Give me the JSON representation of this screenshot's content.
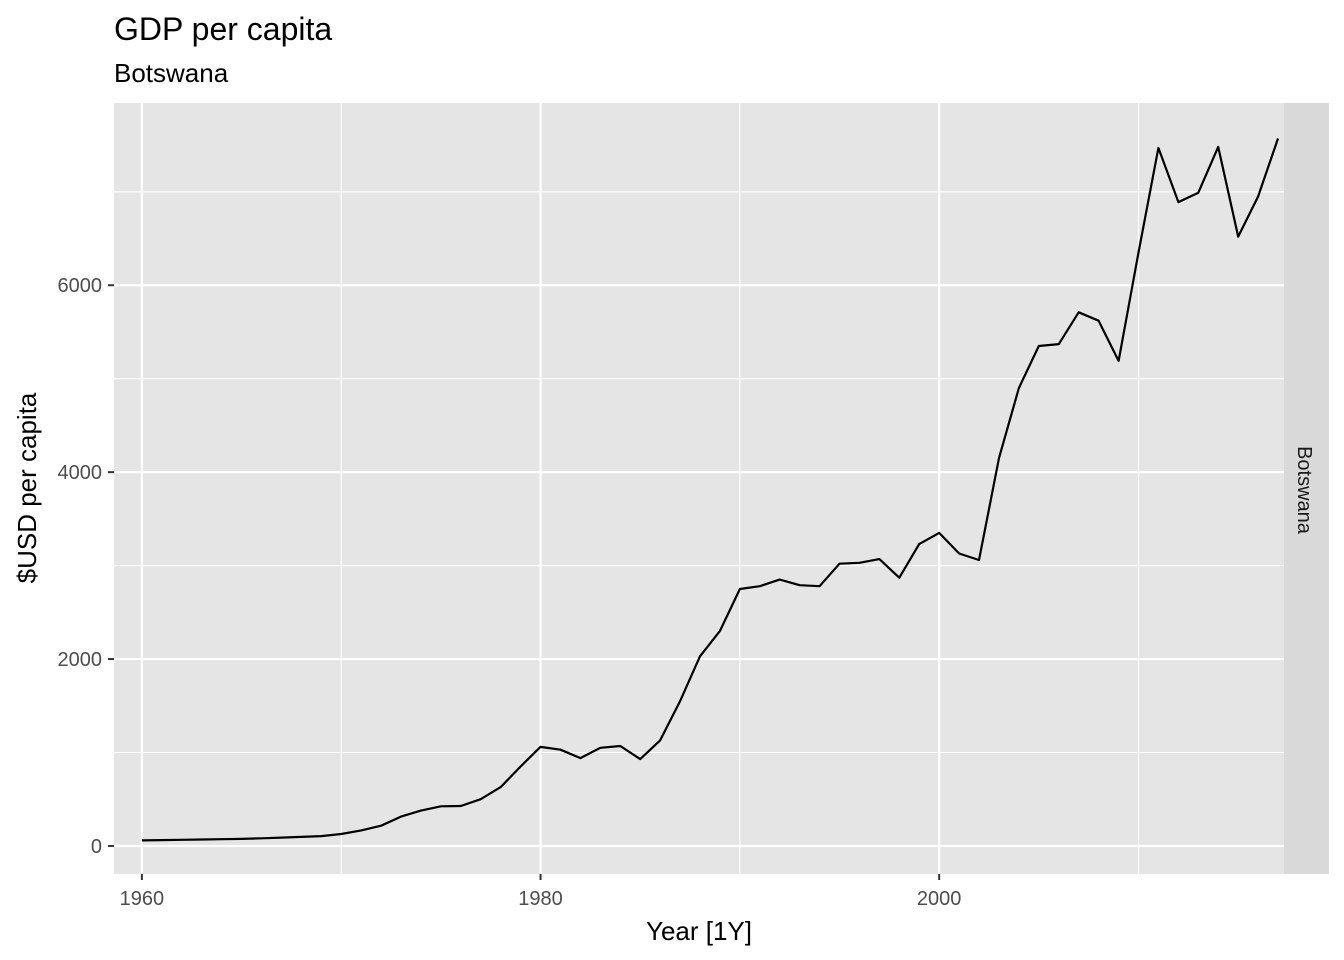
{
  "chart_data": {
    "type": "line",
    "title": "GDP per capita",
    "subtitle": "Botswana",
    "xlabel": "Year [1Y]",
    "ylabel": "$USD per capita",
    "facet_label": "Botswana",
    "xlim": [
      1958.6,
      2017.3
    ],
    "ylim": [
      -300,
      7950
    ],
    "x_ticks": [
      1960,
      1980,
      2000
    ],
    "x_minor_ticks": [
      1970,
      1990,
      2010
    ],
    "y_ticks": [
      0,
      2000,
      4000,
      6000
    ],
    "y_minor_ticks": [
      1000,
      3000,
      5000,
      7000
    ],
    "grid": true,
    "line_color": "#000000",
    "panel_color": "#e5e5e5",
    "strip_color": "#d9d9d9",
    "series": [
      {
        "x": [
          1960,
          1961,
          1962,
          1963,
          1964,
          1965,
          1966,
          1967,
          1968,
          1969,
          1970,
          1971,
          1972,
          1973,
          1974,
          1975,
          1976,
          1977,
          1978,
          1979,
          1980,
          1981,
          1982,
          1983,
          1984,
          1985,
          1986,
          1987,
          1988,
          1989,
          1990,
          1991,
          1992,
          1993,
          1994,
          1995,
          1996,
          1997,
          1998,
          1999,
          2000,
          2001,
          2002,
          2003,
          2004,
          2005,
          2006,
          2007,
          2008,
          2009,
          2010,
          2011,
          2012,
          2013,
          2014,
          2015,
          2016,
          2017
        ],
        "values": [
          60,
          63,
          66,
          69,
          72,
          76,
          82,
          89,
          97,
          106,
          128,
          167,
          217,
          314,
          378,
          424,
          428,
          500,
          630,
          850,
          1060,
          1030,
          940,
          1050,
          1070,
          930,
          1130,
          1550,
          2030,
          2300,
          2750,
          2780,
          2850,
          2790,
          2780,
          3020,
          3030,
          3070,
          2870,
          3230,
          3350,
          3130,
          3060,
          4150,
          4900,
          5350,
          5370,
          5710,
          5620,
          5190,
          6350,
          7470,
          6890,
          6990,
          7480,
          6520,
          6950,
          7570
        ]
      }
    ]
  }
}
